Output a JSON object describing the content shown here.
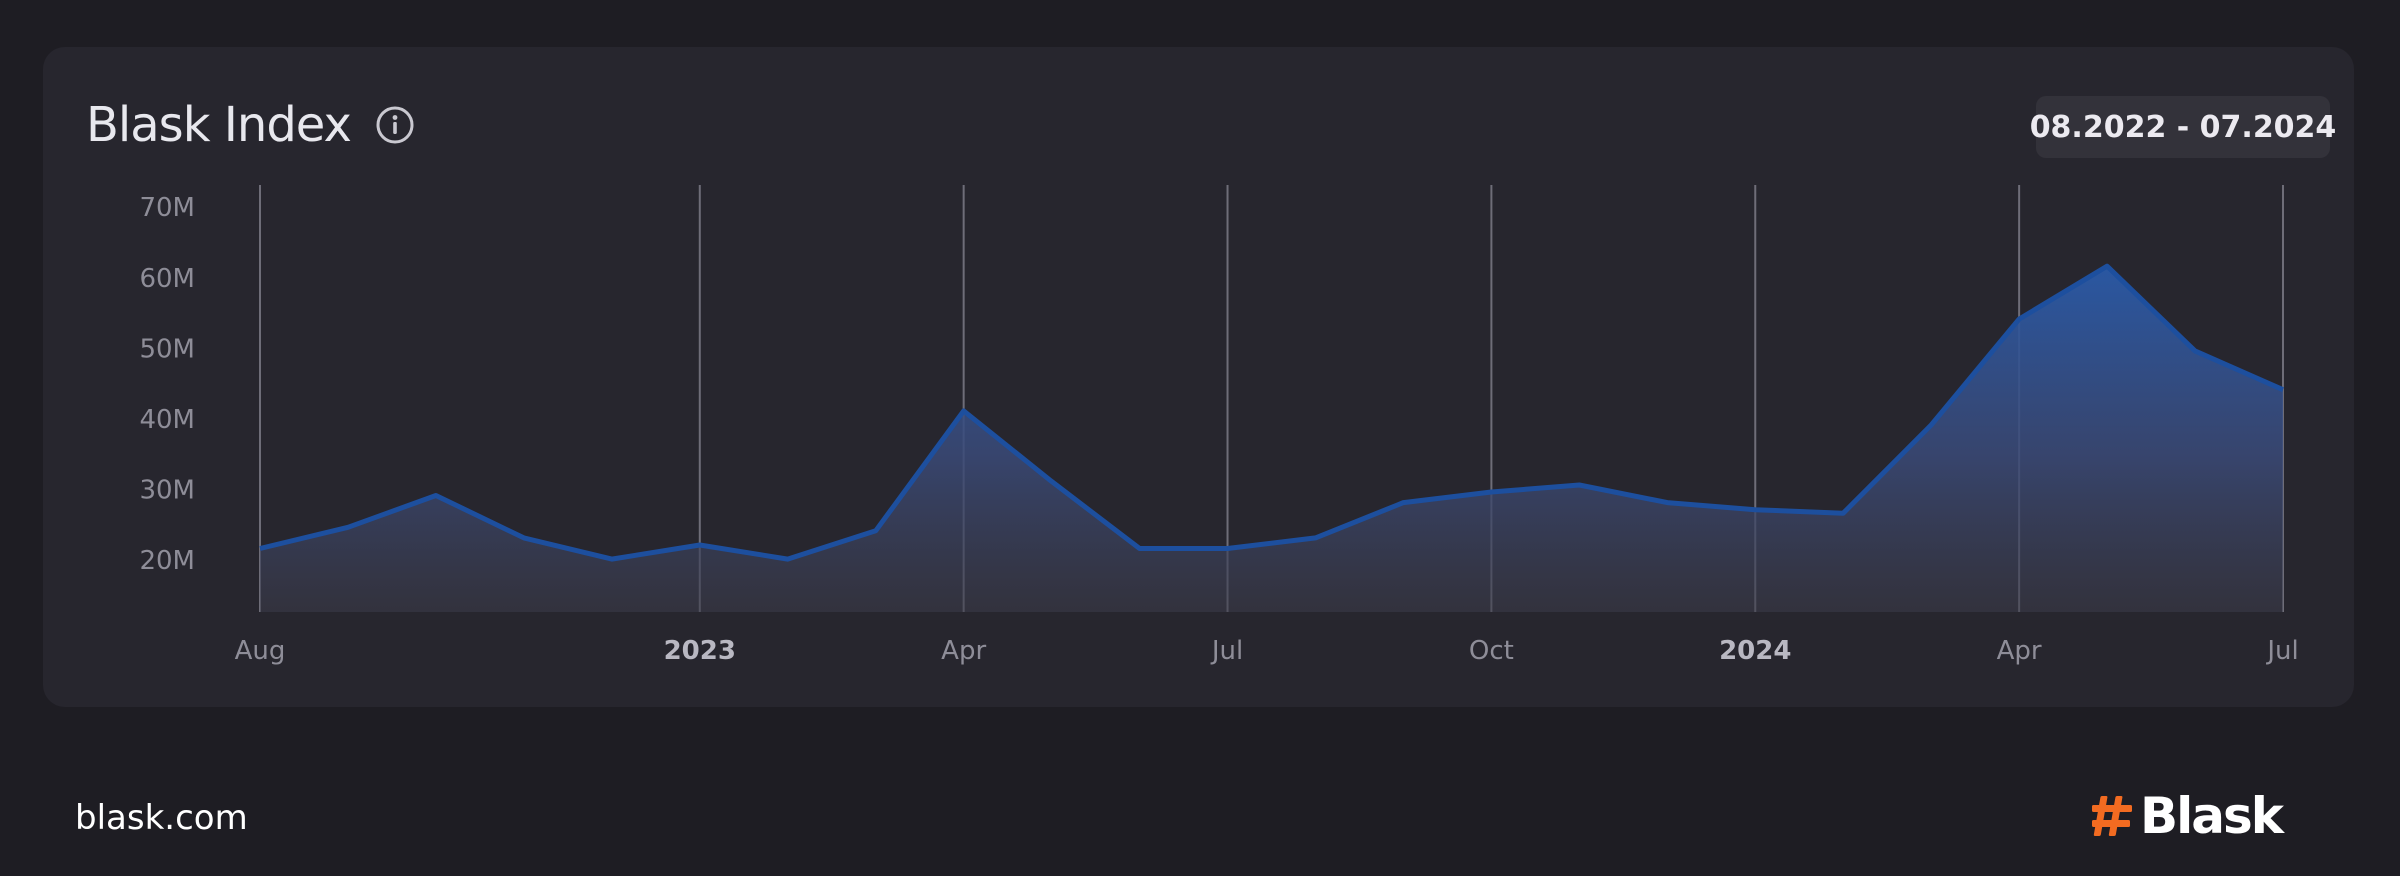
{
  "card": {
    "title": "Blask Index",
    "date_range": "08.2022 - 07.2024"
  },
  "footer": {
    "url": "blask.com",
    "logo_text": "Blask"
  },
  "colors": {
    "background": "#1e1d23",
    "card": "#27262e",
    "line": "#1d4f9e",
    "fill_top": "#2a5aa8",
    "brand_orange": "#f26b21"
  },
  "chart_data": {
    "type": "area",
    "title": "Blask Index",
    "y_ticks": [
      "20M",
      "30M",
      "40M",
      "50M",
      "60M",
      "70M"
    ],
    "y_tick_values": [
      20,
      30,
      40,
      50,
      60,
      70
    ],
    "ylim": [
      12.5,
      73
    ],
    "x_ticks": [
      {
        "label": "Aug",
        "month_index": 0,
        "bold": false
      },
      {
        "label": "2023",
        "month_index": 5,
        "bold": true
      },
      {
        "label": "Apr",
        "month_index": 8,
        "bold": false
      },
      {
        "label": "Jul",
        "month_index": 11,
        "bold": false
      },
      {
        "label": "Oct",
        "month_index": 14,
        "bold": false
      },
      {
        "label": "2024",
        "month_index": 17,
        "bold": true
      },
      {
        "label": "Apr",
        "month_index": 20,
        "bold": false
      },
      {
        "label": "Jul",
        "month_index": 23,
        "bold": false
      }
    ],
    "series": [
      {
        "months": [
          "2022-08",
          "2022-09",
          "2022-10",
          "2022-11",
          "2022-12",
          "2023-01",
          "2023-02",
          "2023-03",
          "2023-04",
          "2023-05",
          "2023-06",
          "2023-07",
          "2023-08",
          "2023-09",
          "2023-10",
          "2023-11",
          "2023-12",
          "2024-01",
          "2024-02",
          "2024-03",
          "2024-04",
          "2024-05",
          "2024-06",
          "2024-07"
        ],
        "values": [
          21.5,
          24.5,
          29,
          23,
          20,
          22,
          20,
          24,
          41,
          31,
          21.5,
          21.5,
          23,
          28,
          29.5,
          30.5,
          28,
          27,
          26.5,
          39,
          54,
          61.5,
          49.5,
          44
        ]
      }
    ]
  }
}
